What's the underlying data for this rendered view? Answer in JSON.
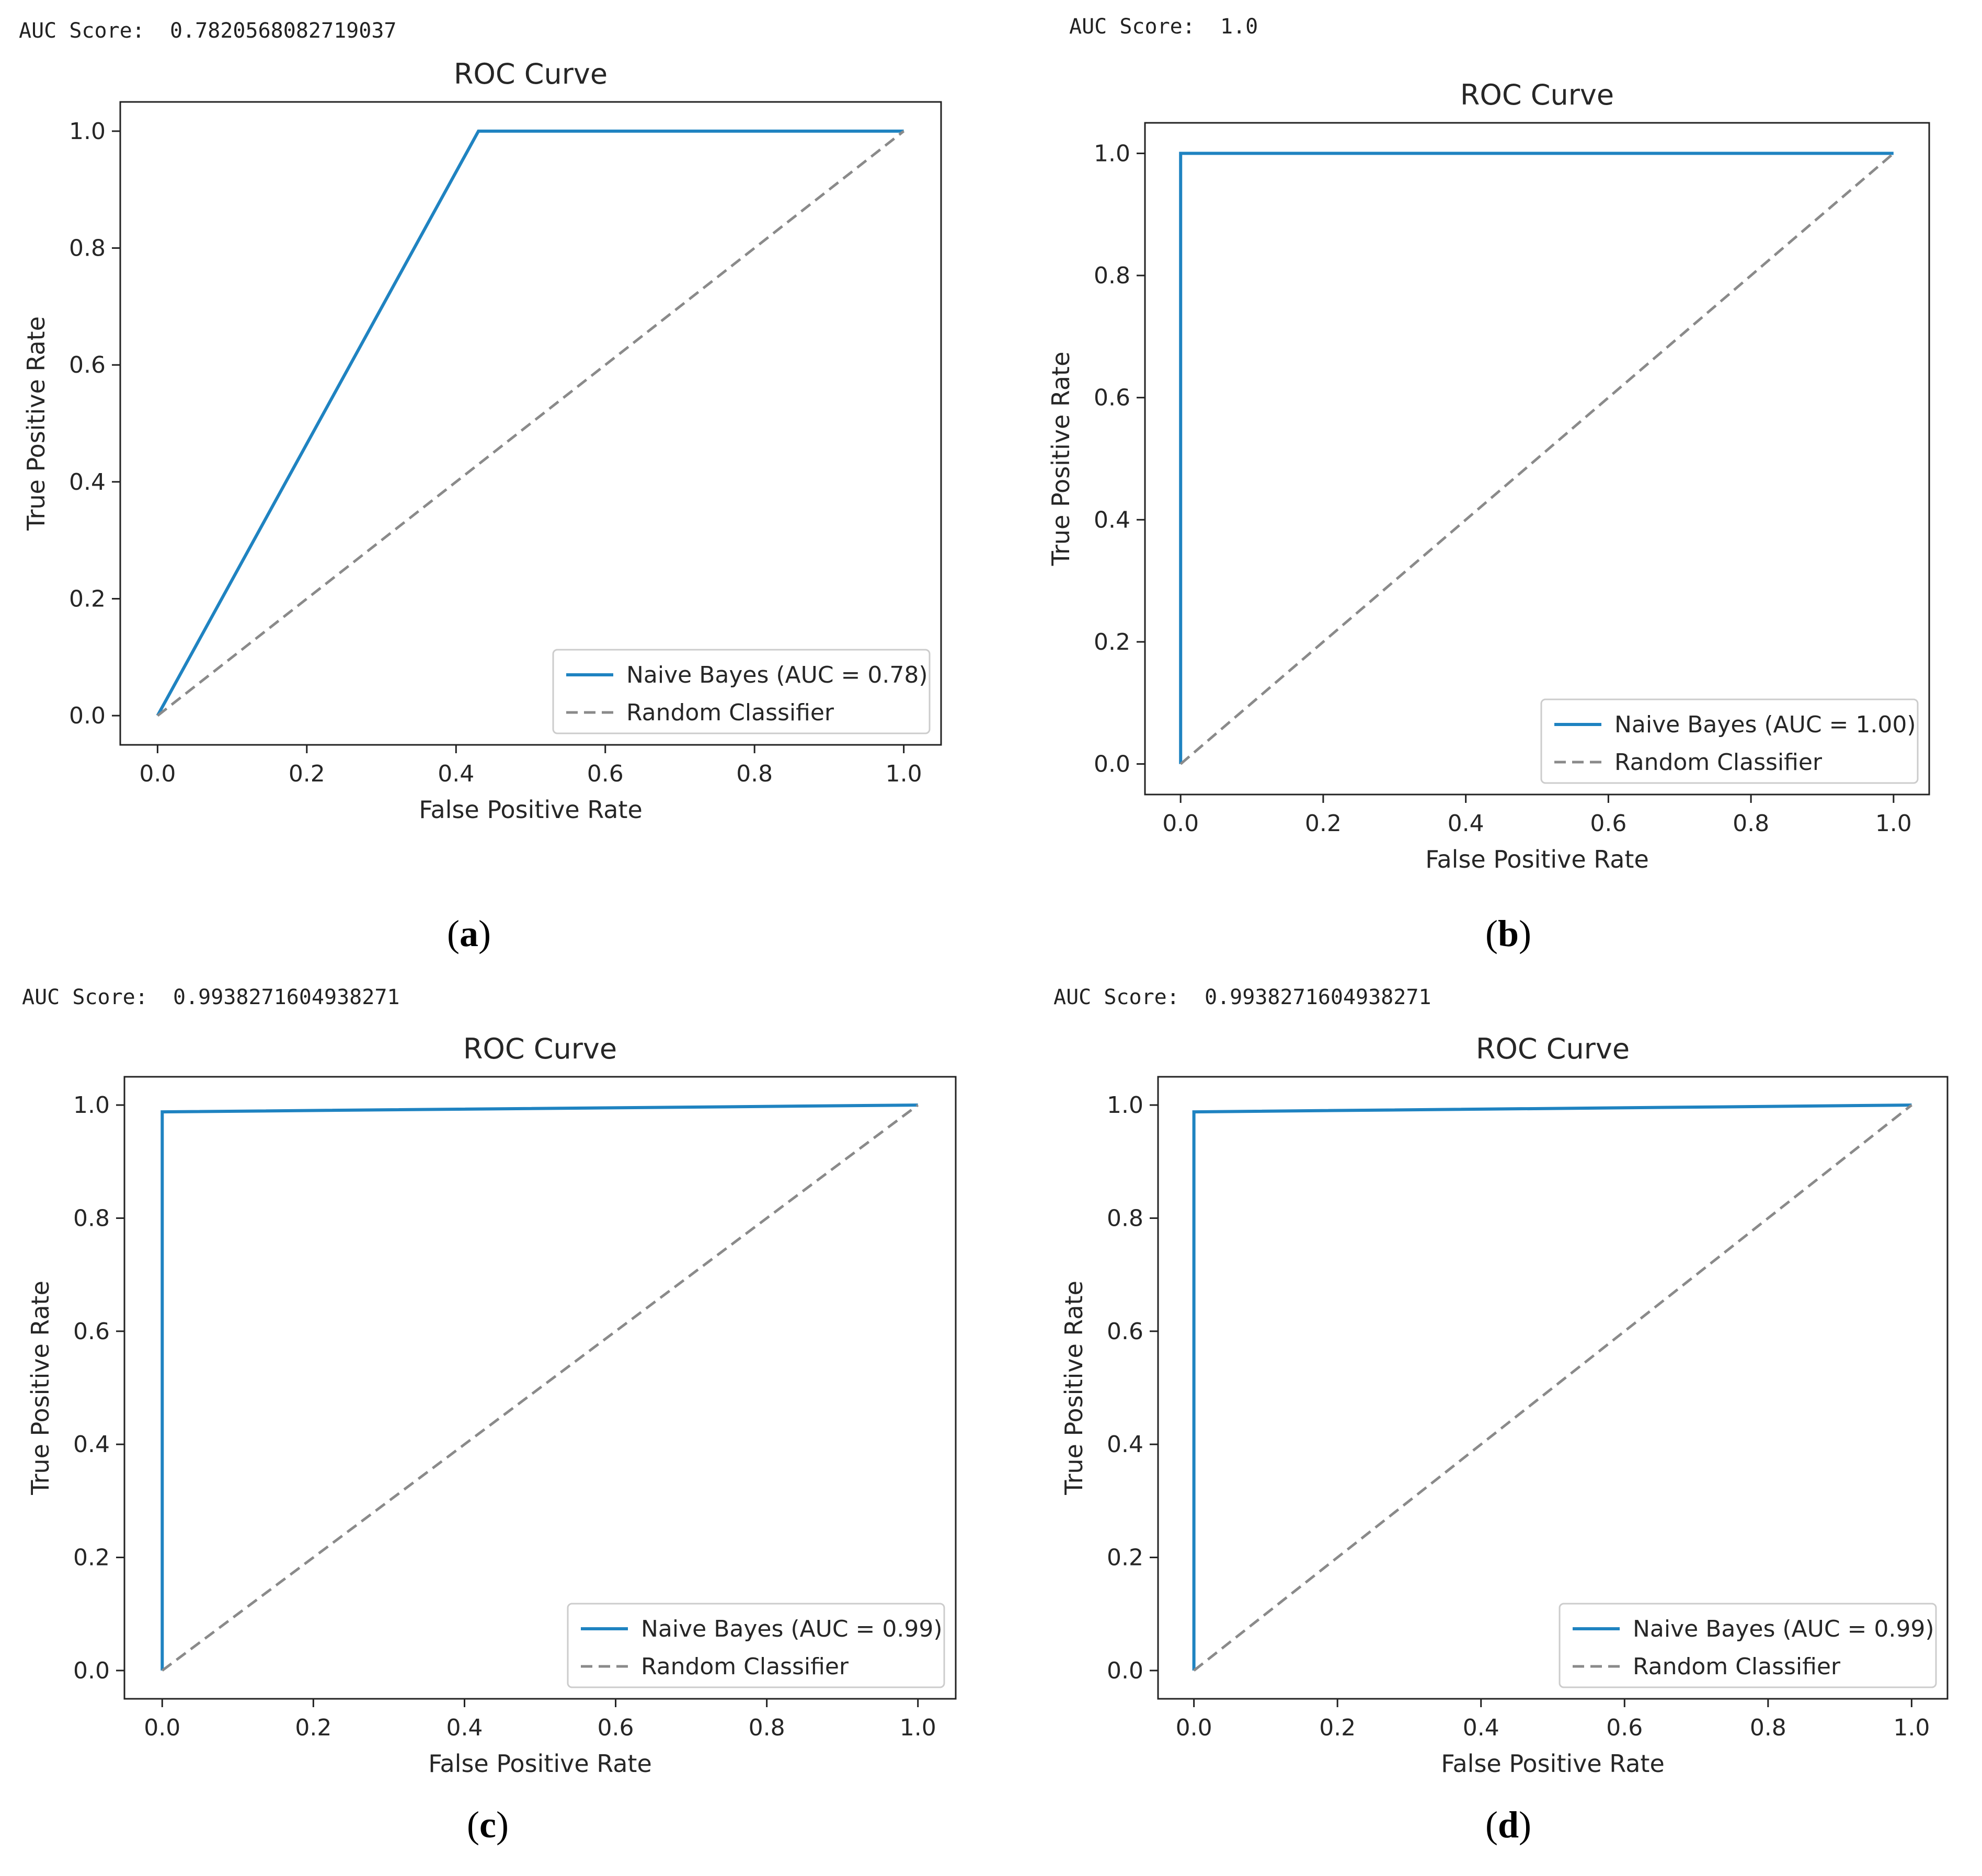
{
  "colors": {
    "roc_line": "#1f83c1",
    "random_line": "#8a8a8a",
    "axes": "#222222",
    "legend_border": "#cccccc"
  },
  "panels": [
    {
      "id": "a",
      "score_label": "AUC Score:",
      "score_value": "0.7820568082719037",
      "caption": "a",
      "chart_data": {
        "type": "line",
        "title": "ROC Curve",
        "xlabel": "False Positive Rate",
        "ylabel": "True Positive Rate",
        "xlim": [
          -0.05,
          1.05
        ],
        "ylim": [
          -0.05,
          1.05
        ],
        "xticks": [
          "0.0",
          "0.2",
          "0.4",
          "0.6",
          "0.8",
          "1.0"
        ],
        "yticks": [
          "0.0",
          "0.2",
          "0.4",
          "0.6",
          "0.8",
          "1.0"
        ],
        "legend_position": "lower-right",
        "series": [
          {
            "name": "Naive Bayes (AUC = 0.78)",
            "style": "solid",
            "x": [
              0.0,
              0.43,
              1.0
            ],
            "y": [
              0.0,
              1.0,
              1.0
            ]
          },
          {
            "name": "Random Classifier",
            "style": "dashed",
            "x": [
              0.0,
              1.0
            ],
            "y": [
              0.0,
              1.0
            ]
          }
        ]
      }
    },
    {
      "id": "b",
      "score_label": "AUC Score:",
      "score_value": "1.0",
      "caption": "b",
      "chart_data": {
        "type": "line",
        "title": "ROC Curve",
        "xlabel": "False Positive Rate",
        "ylabel": "True Positive Rate",
        "xlim": [
          -0.05,
          1.05
        ],
        "ylim": [
          -0.05,
          1.05
        ],
        "xticks": [
          "0.0",
          "0.2",
          "0.4",
          "0.6",
          "0.8",
          "1.0"
        ],
        "yticks": [
          "0.0",
          "0.2",
          "0.4",
          "0.6",
          "0.8",
          "1.0"
        ],
        "legend_position": "lower-right",
        "series": [
          {
            "name": "Naive Bayes (AUC = 1.00)",
            "style": "solid",
            "x": [
              0.0,
              0.0,
              1.0
            ],
            "y": [
              0.0,
              1.0,
              1.0
            ]
          },
          {
            "name": "Random Classifier",
            "style": "dashed",
            "x": [
              0.0,
              1.0
            ],
            "y": [
              0.0,
              1.0
            ]
          }
        ]
      }
    },
    {
      "id": "c",
      "score_label": "AUC Score:",
      "score_value": "0.9938271604938271",
      "caption": "c",
      "chart_data": {
        "type": "line",
        "title": "ROC Curve",
        "xlabel": "False Positive Rate",
        "ylabel": "True Positive Rate",
        "xlim": [
          -0.05,
          1.05
        ],
        "ylim": [
          -0.05,
          1.05
        ],
        "xticks": [
          "0.0",
          "0.2",
          "0.4",
          "0.6",
          "0.8",
          "1.0"
        ],
        "yticks": [
          "0.0",
          "0.2",
          "0.4",
          "0.6",
          "0.8",
          "1.0"
        ],
        "legend_position": "lower-right",
        "series": [
          {
            "name": "Naive Bayes (AUC = 0.99)",
            "style": "solid",
            "x": [
              0.0,
              0.0,
              1.0
            ],
            "y": [
              0.0,
              0.988,
              1.0
            ]
          },
          {
            "name": "Random Classifier",
            "style": "dashed",
            "x": [
              0.0,
              1.0
            ],
            "y": [
              0.0,
              1.0
            ]
          }
        ]
      }
    },
    {
      "id": "d",
      "score_label": "AUC Score:",
      "score_value": "0.9938271604938271",
      "caption": "d",
      "chart_data": {
        "type": "line",
        "title": "ROC Curve",
        "xlabel": "False Positive Rate",
        "ylabel": "True Positive Rate",
        "xlim": [
          -0.05,
          1.05
        ],
        "ylim": [
          -0.05,
          1.05
        ],
        "xticks": [
          "0.0",
          "0.2",
          "0.4",
          "0.6",
          "0.8",
          "1.0"
        ],
        "yticks": [
          "0.0",
          "0.2",
          "0.4",
          "0.6",
          "0.8",
          "1.0"
        ],
        "legend_position": "lower-right",
        "series": [
          {
            "name": "Naive Bayes (AUC = 0.99)",
            "style": "solid",
            "x": [
              0.0,
              0.0,
              1.0
            ],
            "y": [
              0.0,
              0.988,
              1.0
            ]
          },
          {
            "name": "Random Classifier",
            "style": "dashed",
            "x": [
              0.0,
              1.0
            ],
            "y": [
              0.0,
              1.0
            ]
          }
        ]
      }
    }
  ]
}
